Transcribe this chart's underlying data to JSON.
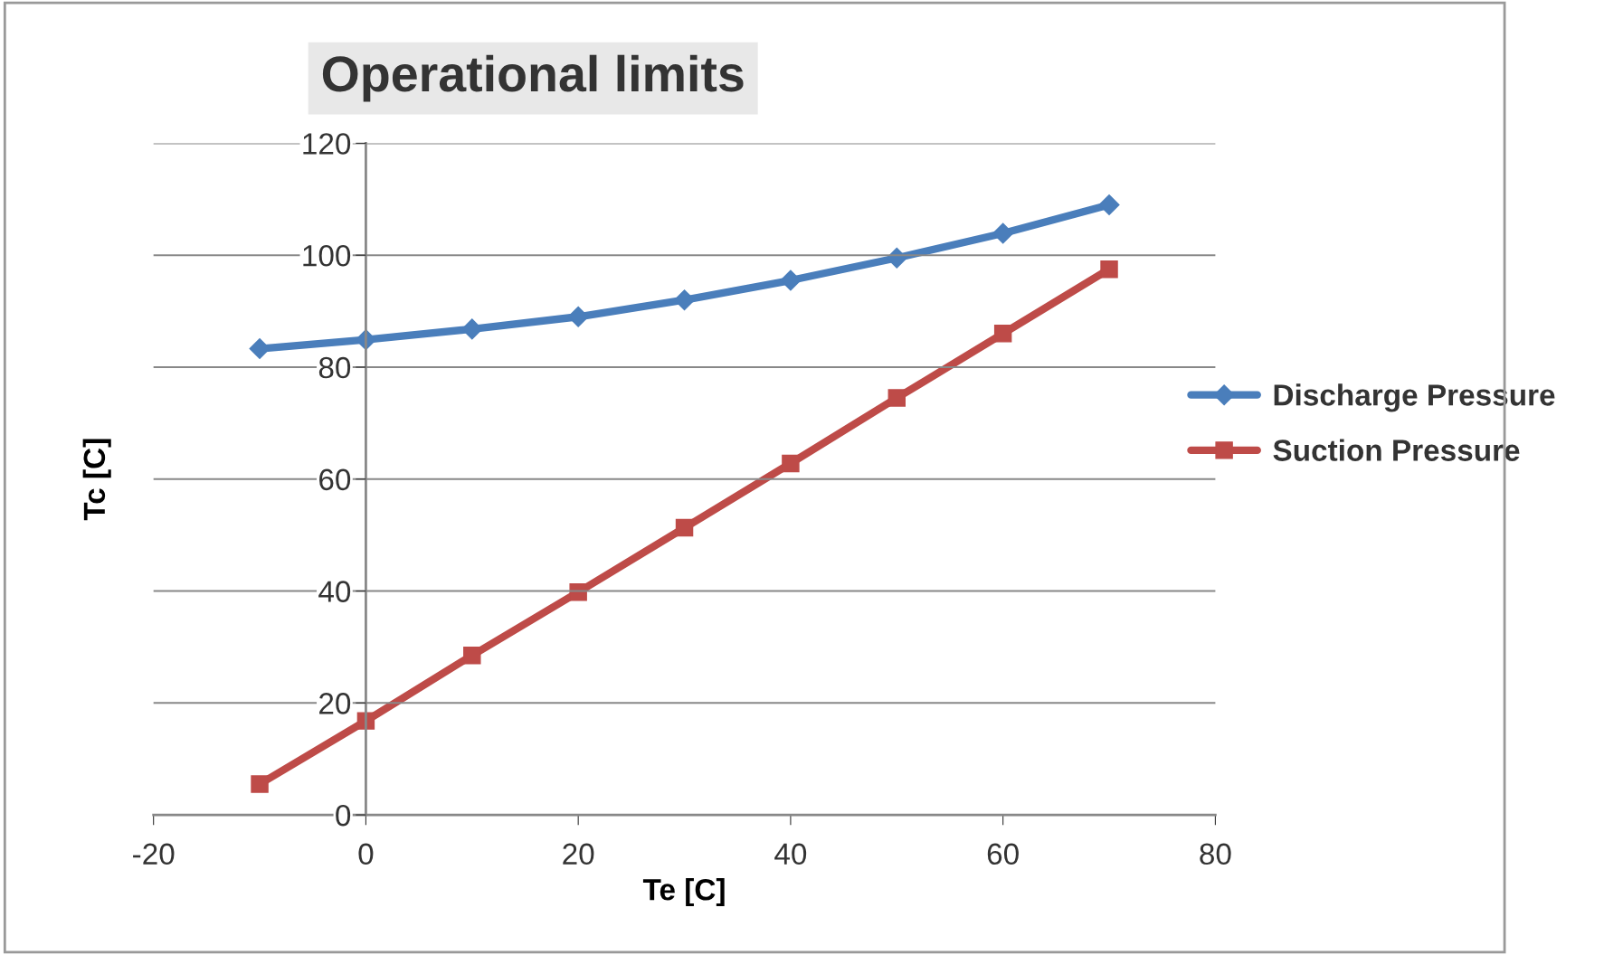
{
  "chart_data": {
    "type": "line",
    "title": "Operational limits",
    "xlabel": "Te [C]",
    "ylabel": "Tc [C]",
    "x": [
      -10,
      0,
      10,
      20,
      30,
      40,
      50,
      60,
      70
    ],
    "series": [
      {
        "name": "Discharge Pressure",
        "color": "#4a7ebb",
        "marker": "diamond",
        "values": [
          83.3,
          84.9,
          86.8,
          89,
          92,
          95.5,
          99.5,
          103.9,
          109
        ]
      },
      {
        "name": "Suction Pressure",
        "color": "#be4b48",
        "marker": "square",
        "values": [
          5.5,
          16.8,
          28.5,
          39.8,
          51.3,
          62.8,
          74.5,
          86,
          97.5
        ]
      }
    ],
    "xlim": [
      -20,
      80
    ],
    "xticks": [
      -20,
      0,
      20,
      40,
      60,
      80
    ],
    "ylim": [
      0,
      120
    ],
    "yticks": [
      0,
      20,
      40,
      60,
      80,
      100,
      120
    ],
    "grid": "y",
    "legend": "right",
    "line_style": "solid"
  }
}
